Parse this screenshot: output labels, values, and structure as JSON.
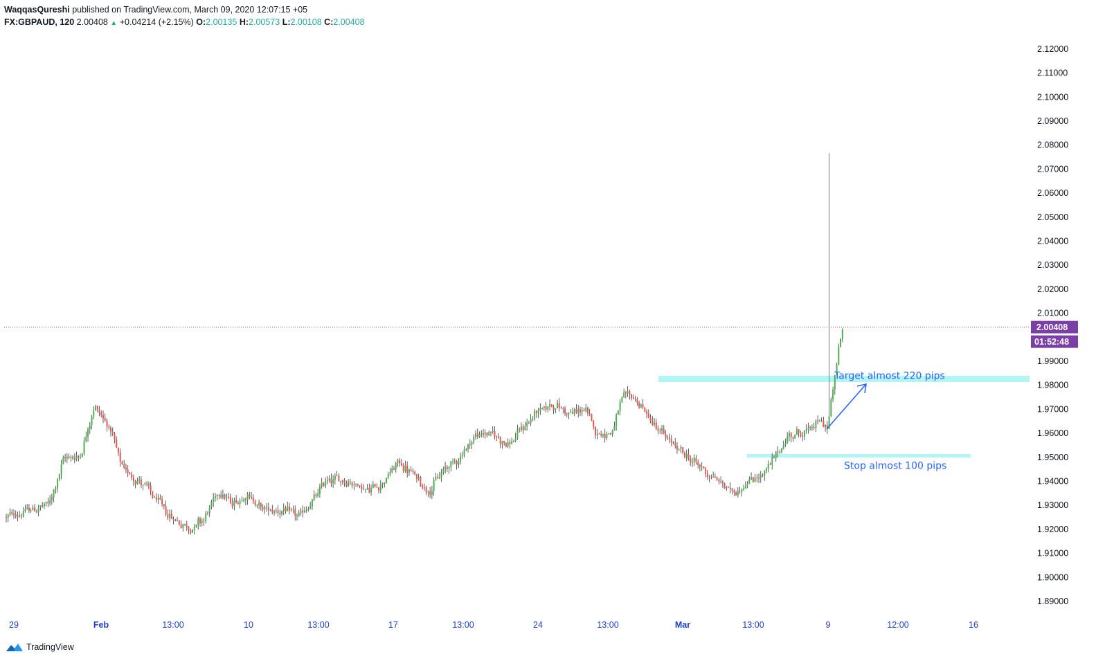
{
  "header": {
    "author": "WaqqasQureshi",
    "published": "published on TradingView.com, March 09, 2020 12:07:15 +05",
    "symbol": "FX:GBPAUD, 120",
    "last": "2.00408",
    "change": "+0.04214 (+2.15%)",
    "open_label": "O:",
    "open": "2.00135",
    "high_label": "H:",
    "high": "2.00573",
    "low_label": "L:",
    "low": "2.00108",
    "close_label": "C:",
    "close": "2.00408"
  },
  "brand": {
    "name": "TradingView",
    "logo_icon": "tradingview-logo-icon"
  },
  "colors": {
    "up": "#4caf50",
    "down": "#ef5350",
    "wick": "#131722",
    "zone": "#b2f5f5",
    "annotation": "#2962ff",
    "price_tag": "#7b3fa8"
  },
  "chart_data": {
    "type": "candlestick",
    "symbol": "FX:GBPAUD",
    "interval": "120",
    "ylim": [
      1.885,
      2.125
    ],
    "y_ticks": [
      "2.12000",
      "2.11000",
      "2.10000",
      "2.09000",
      "2.08000",
      "2.07000",
      "2.06000",
      "2.05000",
      "2.04000",
      "2.03000",
      "2.02000",
      "2.01000",
      "1.99000",
      "1.98000",
      "1.97000",
      "1.96000",
      "1.95000",
      "1.94000",
      "1.93000",
      "1.92000",
      "1.91000",
      "1.90000",
      "1.89000"
    ],
    "x_ticks": [
      {
        "label": "29",
        "bold": false
      },
      {
        "label": "Feb",
        "bold": true
      },
      {
        "label": "13:00",
        "bold": false
      },
      {
        "label": "10",
        "bold": false
      },
      {
        "label": "13:00",
        "bold": false
      },
      {
        "label": "17",
        "bold": false
      },
      {
        "label": "13:00",
        "bold": false
      },
      {
        "label": "24",
        "bold": false
      },
      {
        "label": "13:00",
        "bold": false
      },
      {
        "label": "Mar",
        "bold": true
      },
      {
        "label": "13:00",
        "bold": false
      },
      {
        "label": "9",
        "bold": false
      },
      {
        "label": "12:00",
        "bold": false
      },
      {
        "label": "16",
        "bold": false
      }
    ],
    "anchors": [
      [
        0,
        1.925
      ],
      [
        12,
        1.928
      ],
      [
        22,
        1.93
      ],
      [
        30,
        1.95
      ],
      [
        38,
        1.95
      ],
      [
        46,
        1.972
      ],
      [
        54,
        1.962
      ],
      [
        60,
        1.945
      ],
      [
        70,
        1.94
      ],
      [
        78,
        1.932
      ],
      [
        86,
        1.925
      ],
      [
        96,
        1.92
      ],
      [
        104,
        1.925
      ],
      [
        112,
        1.937
      ],
      [
        118,
        1.93
      ],
      [
        126,
        1.935
      ],
      [
        134,
        1.928
      ],
      [
        144,
        1.928
      ],
      [
        154,
        1.925
      ],
      [
        162,
        1.933
      ],
      [
        168,
        1.941
      ],
      [
        180,
        1.94
      ],
      [
        190,
        1.936
      ],
      [
        198,
        1.94
      ],
      [
        206,
        1.948
      ],
      [
        214,
        1.942
      ],
      [
        222,
        1.936
      ],
      [
        230,
        1.945
      ],
      [
        238,
        1.95
      ],
      [
        246,
        1.959
      ],
      [
        254,
        1.96
      ],
      [
        264,
        1.955
      ],
      [
        272,
        1.963
      ],
      [
        280,
        1.97
      ],
      [
        288,
        1.972
      ],
      [
        296,
        1.968
      ],
      [
        304,
        1.97
      ],
      [
        310,
        1.96
      ],
      [
        318,
        1.96
      ],
      [
        324,
        1.975
      ],
      [
        330,
        1.975
      ],
      [
        336,
        1.968
      ],
      [
        342,
        1.962
      ],
      [
        350,
        1.955
      ],
      [
        358,
        1.95
      ],
      [
        366,
        1.945
      ],
      [
        374,
        1.94
      ],
      [
        382,
        1.935
      ],
      [
        390,
        1.94
      ],
      [
        398,
        1.943
      ],
      [
        404,
        1.95
      ],
      [
        412,
        1.96
      ],
      [
        420,
        1.96
      ],
      [
        426,
        1.965
      ],
      [
        432,
        1.962
      ],
      [
        434,
        1.977
      ],
      [
        436,
        1.985
      ],
      [
        438,
        2.0
      ],
      [
        440,
        2.004
      ]
    ],
    "candle_count": 441,
    "spike": {
      "index": 433,
      "high": 2.0765
    },
    "last_price": "2.00408",
    "countdown": "01:52:48",
    "target_zone": {
      "price": 1.9825,
      "label": "Target almost 220 pips"
    },
    "stop_zone": {
      "price": 1.9505,
      "label": "Stop almost 100 pips"
    }
  }
}
